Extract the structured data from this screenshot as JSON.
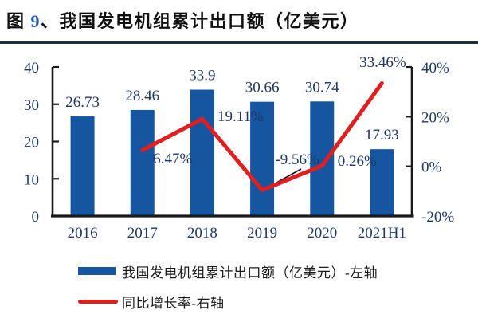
{
  "title": {
    "prefix": "图 ",
    "number": "9",
    "rest": "、我国发电机组累计出口额（亿美元）"
  },
  "colors": {
    "bar": "#1656A0",
    "line": "#E02020",
    "axis_line": "#1a1a1a",
    "chart_text": "#1F3864",
    "annotation_leader": "#111111",
    "title_number": "#1F5CAD",
    "divider": "#1F2C48"
  },
  "chart_data": {
    "type": "bar+line combo",
    "categories": [
      "2016",
      "2017",
      "2018",
      "2019",
      "2020",
      "2021H1"
    ],
    "series": [
      {
        "name": "我国发电机组累计出口额（亿美元）-左轴",
        "type": "bar",
        "axis": "left",
        "values": [
          26.73,
          28.46,
          33.9,
          30.66,
          30.74,
          17.93
        ],
        "labels": [
          "26.73",
          "28.46",
          "33.9",
          "30.66",
          "30.74",
          "17.93"
        ],
        "color": "#1656A0"
      },
      {
        "name": "同比增长率-右轴",
        "type": "line",
        "axis": "right",
        "values": [
          null,
          6.47,
          19.11,
          -9.56,
          0.26,
          33.46
        ],
        "labels": [
          null,
          "6.47%",
          "19.11%",
          "-9.56%",
          "0.26%",
          "33.46%"
        ],
        "color": "#E02020"
      }
    ],
    "left_axis": {
      "min": 0,
      "max": 40,
      "ticks": [
        0,
        10,
        20,
        30,
        40
      ],
      "tick_labels": [
        "0",
        "10",
        "20",
        "30",
        "40"
      ]
    },
    "right_axis": {
      "min": -20,
      "max": 40,
      "ticks": [
        -20,
        0,
        20,
        40
      ],
      "tick_labels": [
        "-20%",
        "0%",
        "20%",
        "40%"
      ]
    },
    "grid": false,
    "legend_position": "bottom"
  },
  "legend": {
    "items": [
      {
        "label": "我国发电机组累计出口额（亿美元）-左轴"
      },
      {
        "label": "同比增长率-右轴"
      }
    ]
  }
}
